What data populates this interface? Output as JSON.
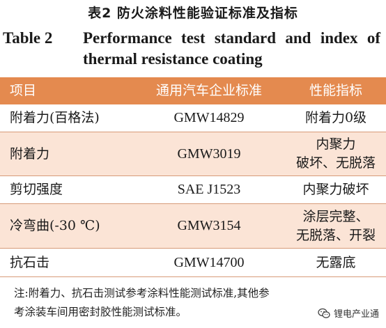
{
  "title_cn": "表2   防火涂料性能验证标准及指标",
  "title_en": {
    "num": "Table 2",
    "line1": "Performance test standard and index of",
    "line2": "thermal resistance coating"
  },
  "table": {
    "header": [
      "项目",
      "通用汽车企业标准",
      "性能指标"
    ],
    "rows": [
      {
        "item": "附着力(百格法)",
        "standard": "GMW14829",
        "index_lines": [
          "附着力0级"
        ]
      },
      {
        "item": "附着力",
        "standard": "GMW3019",
        "index_lines": [
          "内聚力",
          "破坏、无脱落"
        ]
      },
      {
        "item": "剪切强度",
        "standard": "SAE J1523",
        "index_lines": [
          "内聚力破坏"
        ]
      },
      {
        "item": "冷弯曲(-30 ℃)",
        "standard": "GMW3154",
        "index_lines": [
          "涂层完整、",
          "无脱落、开裂"
        ]
      },
      {
        "item": "抗石击",
        "standard": "GMW14700",
        "index_lines": [
          "无露底"
        ]
      }
    ]
  },
  "note": {
    "line1": "注:附着力、抗石击测试参考涂料性能测试标准,其他参",
    "line2": "考涂装车间用密封胶性能测试标准。"
  },
  "watermark": {
    "label": "锂电产业通",
    "icon": "wechat-icon",
    "color": "#2f2f2f"
  },
  "colors": {
    "header_bg": "#e48a4f",
    "header_text": "#ffffff",
    "shaded_row": "#fbe4d6"
  }
}
